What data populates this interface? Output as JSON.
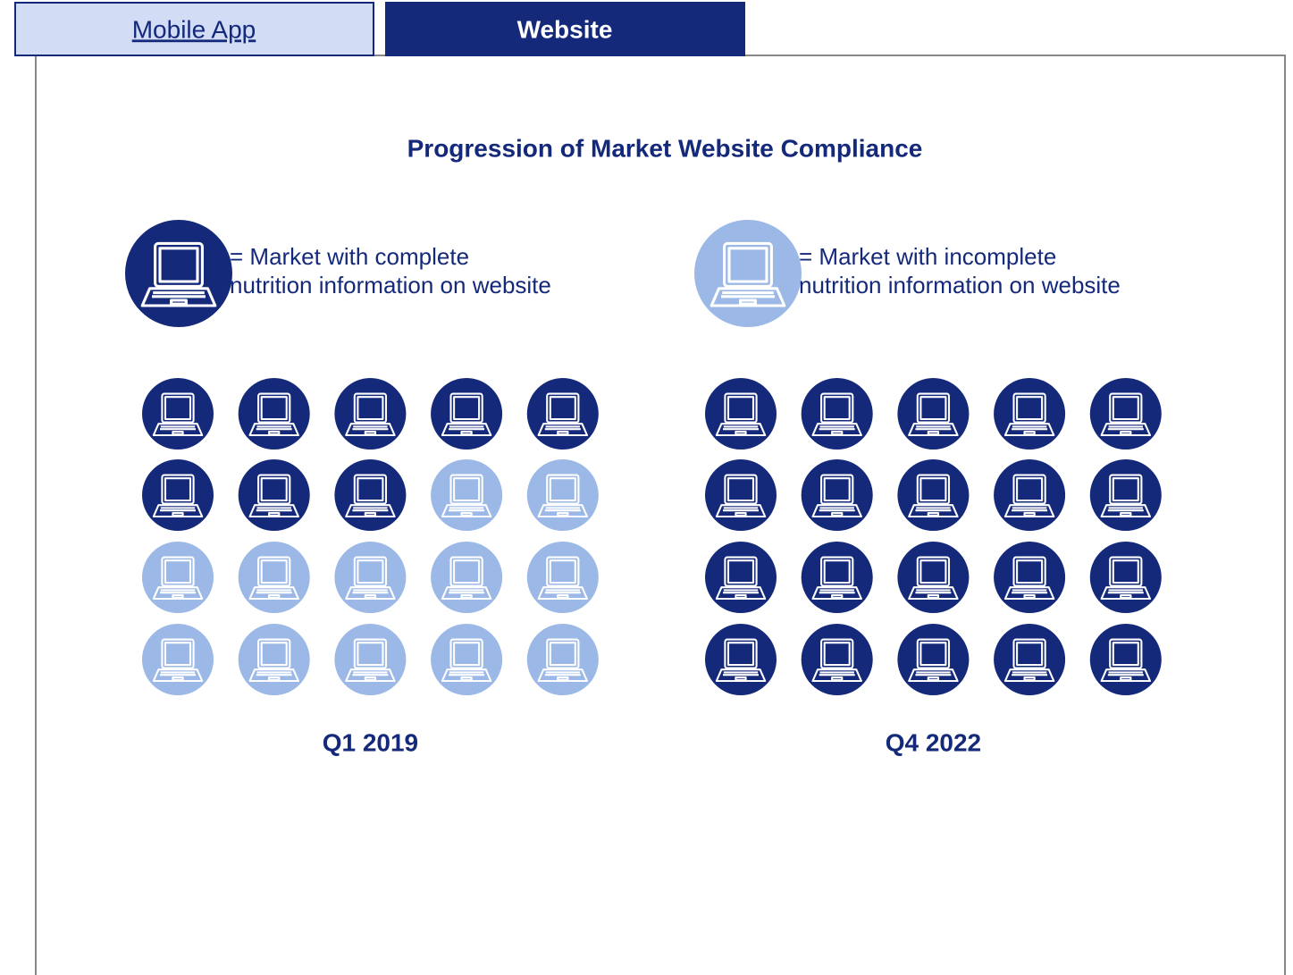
{
  "tabs": {
    "items": [
      "Mobile App",
      "Website"
    ],
    "active": 1
  },
  "title": "Progression of Market Website Compliance",
  "legend": [
    {
      "key": "complete",
      "color": "#14297a",
      "lines": [
        "= Market with complete",
        "nutrition information on website"
      ]
    },
    {
      "key": "incomplete",
      "color": "#9bb8e6",
      "lines": [
        "= Market with incomplete",
        "nutrition information on website"
      ]
    }
  ],
  "chart_data": {
    "type": "icon-array",
    "panels": [
      {
        "label": "Q1 2019",
        "complete": 8,
        "incomplete": 12
      },
      {
        "label": "Q4 2022",
        "complete": 20,
        "incomplete": 0
      }
    ]
  }
}
